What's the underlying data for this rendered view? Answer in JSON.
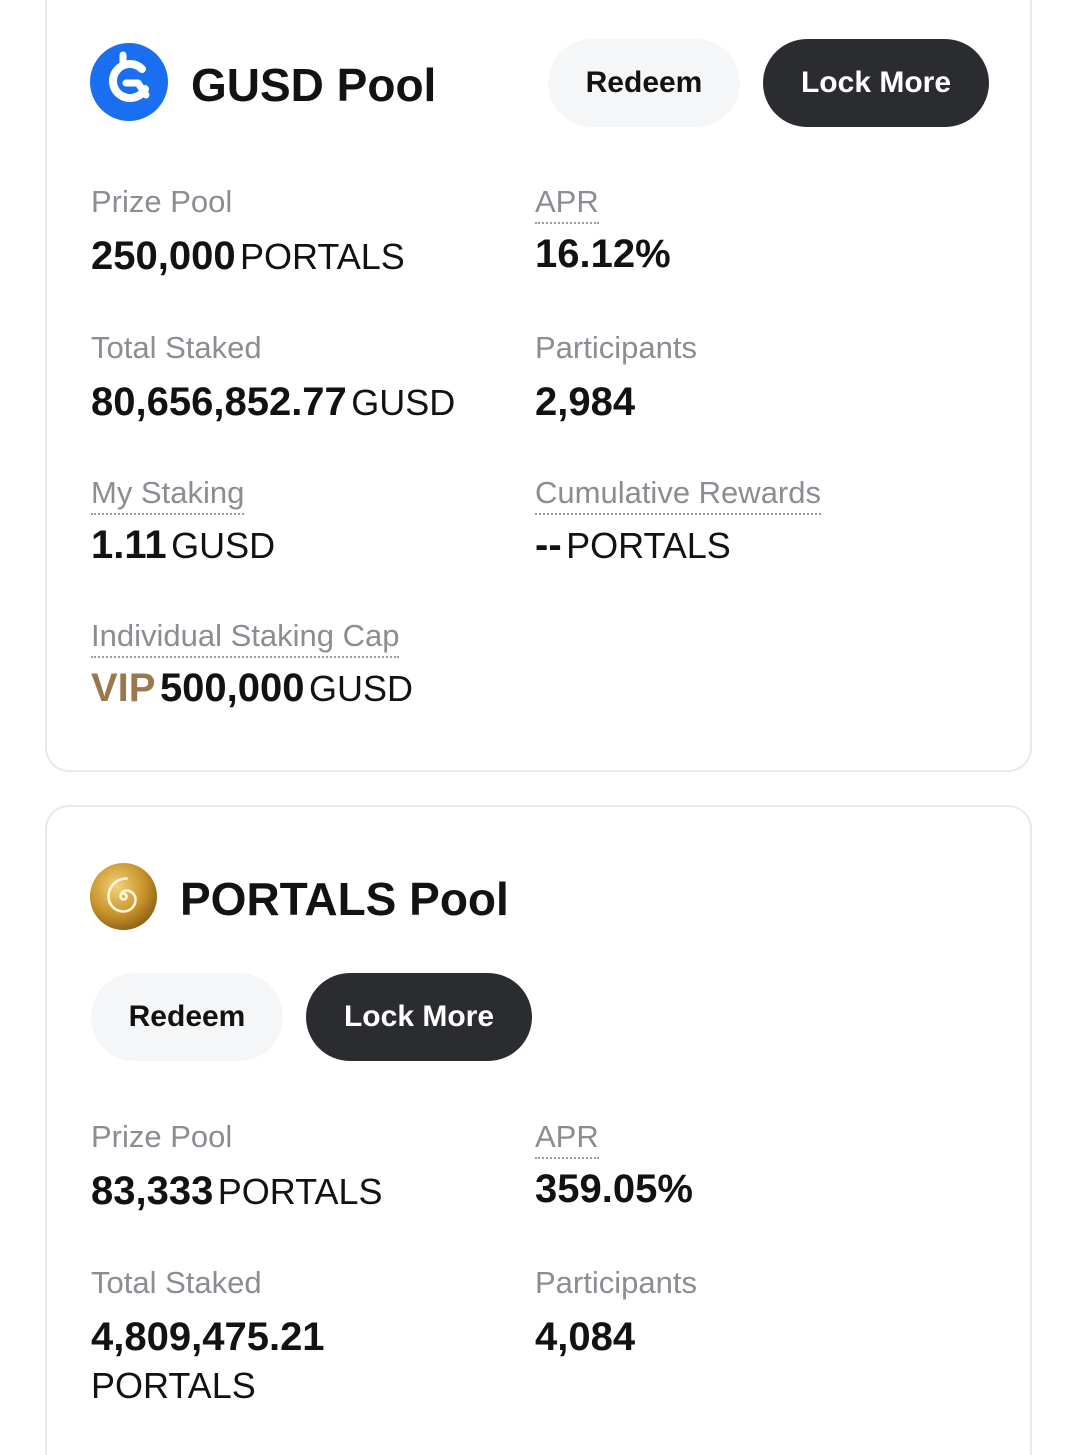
{
  "gusd_pool": {
    "title": "GUSD Pool",
    "logo_icon": "gusd-logo-icon",
    "brand_color": "#1a6ef0",
    "buttons": {
      "redeem": "Redeem",
      "lock_more": "Lock More"
    },
    "prize_pool": {
      "label": "Prize Pool",
      "value": "250,000",
      "unit": "PORTALS"
    },
    "apr": {
      "label": "APR",
      "value": "16.12%"
    },
    "total_staked": {
      "label": "Total Staked",
      "value": "80,656,852.77",
      "unit": "GUSD"
    },
    "participants": {
      "label": "Participants",
      "value": "2,984"
    },
    "my_staking": {
      "label": "My Staking",
      "value": "1.11",
      "unit": "GUSD"
    },
    "cumulative_rewards": {
      "label": "Cumulative Rewards",
      "value": "--",
      "unit": "PORTALS"
    },
    "staking_cap": {
      "label": "Individual Staking Cap",
      "tier": "VIP",
      "value": "500,000",
      "unit": "GUSD"
    }
  },
  "portals_pool": {
    "title": "PORTALS Pool",
    "logo_icon": "portals-spiral-logo-icon",
    "brand_color": "#c8932a",
    "buttons": {
      "redeem": "Redeem",
      "lock_more": "Lock More"
    },
    "prize_pool": {
      "label": "Prize Pool",
      "value": "83,333",
      "unit": "PORTALS"
    },
    "apr": {
      "label": "APR",
      "value": "359.05%"
    },
    "total_staked": {
      "label": "Total Staked",
      "value": "4,809,475.21",
      "unit": "PORTALS"
    },
    "participants": {
      "label": "Participants",
      "value": "4,084"
    }
  }
}
